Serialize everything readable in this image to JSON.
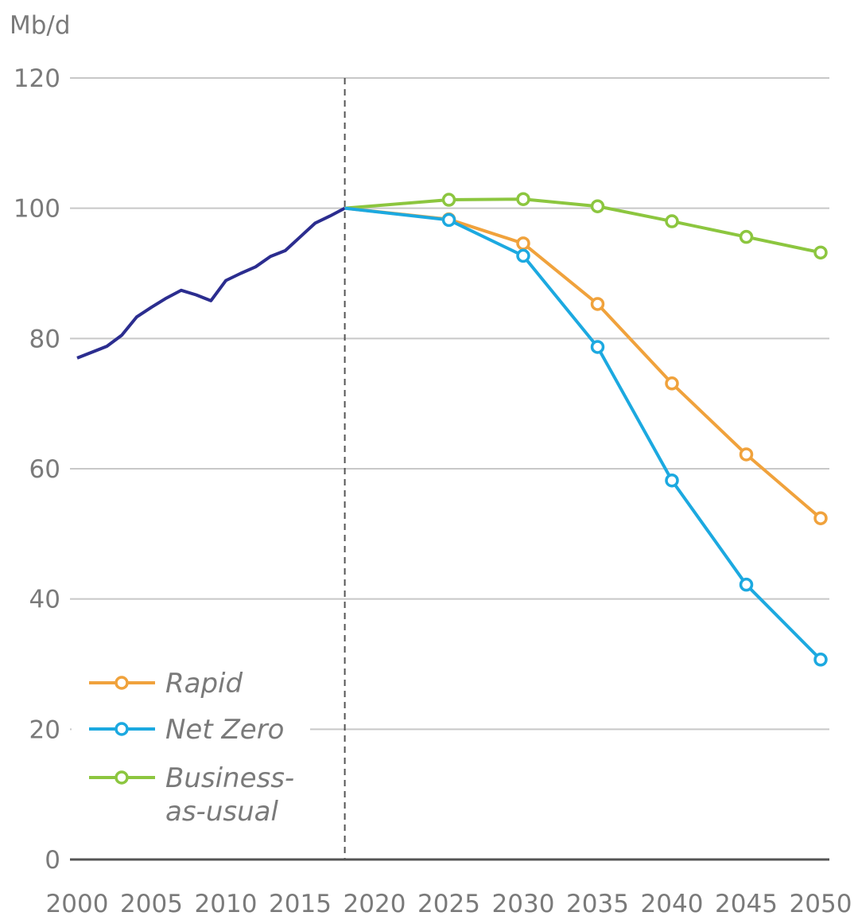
{
  "chart_data": {
    "type": "line",
    "ylabel": "Mb/d",
    "ylim": [
      0,
      120
    ],
    "xlim": [
      2000,
      2050
    ],
    "yticks": [
      "0",
      "20",
      "40",
      "60",
      "80",
      "100",
      "120"
    ],
    "xticks": [
      "2000",
      "2005",
      "2010",
      "2015",
      "2020",
      "2025",
      "2030",
      "2035",
      "2040",
      "2045",
      "2050"
    ],
    "divider_year": 2018,
    "history": {
      "color": "#2b2d8f",
      "x": [
        2000,
        2002,
        2003,
        2004,
        2005,
        2006,
        2007,
        2008,
        2009,
        2010,
        2011,
        2012,
        2013,
        2014,
        2015,
        2016,
        2017,
        2018
      ],
      "y": [
        77,
        78.8,
        80.5,
        83.3,
        84.8,
        86.2,
        87.4,
        86.7,
        85.8,
        88.9,
        90,
        91,
        92.6,
        93.5,
        95.6,
        97.7,
        98.8,
        100
      ]
    },
    "series": [
      {
        "name": "Rapid",
        "color": "#f0a23c",
        "x": [
          2018,
          2025,
          2030,
          2035,
          2040,
          2045,
          2050
        ],
        "y": [
          100,
          98.3,
          94.6,
          85.3,
          73.1,
          62.2,
          52.4
        ]
      },
      {
        "name": "Net Zero",
        "color": "#1ca9e0",
        "x": [
          2018,
          2025,
          2030,
          2035,
          2040,
          2045,
          2050
        ],
        "y": [
          100,
          98.2,
          92.7,
          78.7,
          58.2,
          42.2,
          30.7
        ]
      },
      {
        "name": "Business-as-usual",
        "color": "#8cc63f",
        "x": [
          2018,
          2025,
          2030,
          2035,
          2040,
          2045,
          2050
        ],
        "y": [
          100,
          101.3,
          101.4,
          100.3,
          98,
          95.6,
          93.2
        ]
      }
    ],
    "legend": {
      "position": "bottom-left",
      "items": [
        {
          "lines": [
            "Rapid"
          ],
          "color": "#f0a23c"
        },
        {
          "lines": [
            "Net Zero"
          ],
          "color": "#1ca9e0"
        },
        {
          "lines": [
            "Business-",
            "as-usual"
          ],
          "color": "#8cc63f"
        }
      ]
    },
    "grid": true
  }
}
